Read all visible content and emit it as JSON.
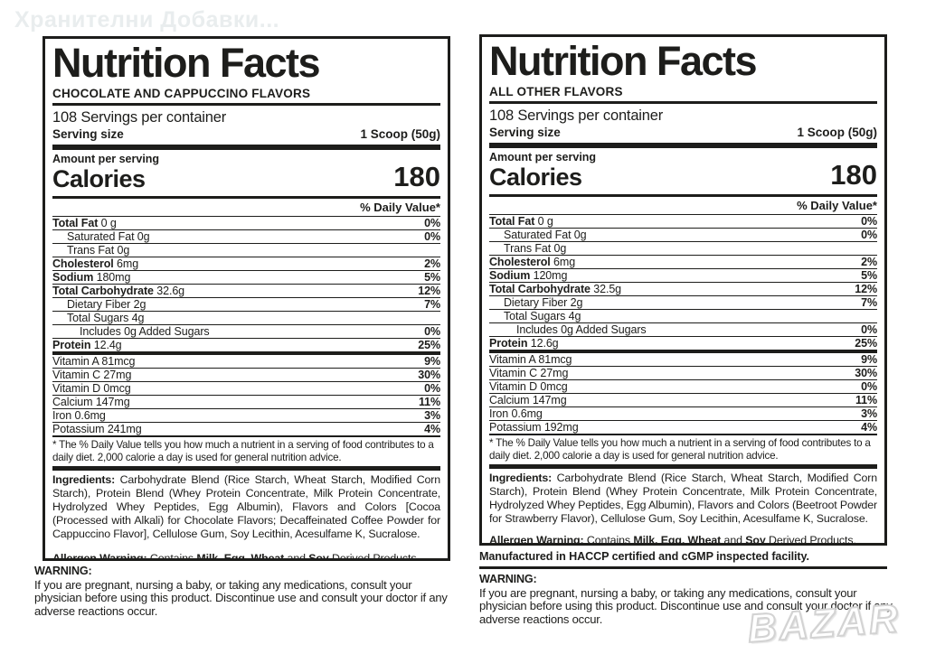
{
  "colors": {
    "text": "#1d1d1b",
    "background": "#ffffff",
    "watermark": "#e9edee"
  },
  "watermark_top": "Хранителни Добавки...",
  "watermark_logo": "BAZAR",
  "labels": {
    "left": {
      "title": "Nutrition Facts",
      "flavor": "CHOCOLATE AND CAPPUCCINO FLAVORS",
      "servings_per_container": "108 Servings per container",
      "serving_size_label": "Serving size",
      "serving_size_value": "1 Scoop (50g)",
      "amount_per_serving": "Amount per serving",
      "calories_label": "Calories",
      "calories_value": "180",
      "daily_value_header": "% Daily Value*",
      "nutrients": [
        {
          "b": "Total Fat",
          "r": " 0 g",
          "dv": "0%"
        },
        {
          "b": "",
          "r": "Saturated Fat 0g",
          "dv": "0%"
        },
        {
          "b": "",
          "r": "Trans Fat 0g",
          "dv": ""
        },
        {
          "b": "Cholesterol",
          "r": " 6mg",
          "dv": "2%"
        },
        {
          "b": "Sodium",
          "r": " 180mg",
          "dv": "5%"
        },
        {
          "b": "Total Carbohydrate",
          "r": " 32.6g",
          "dv": "12%"
        },
        {
          "b": "",
          "r": "Dietary Fiber 2g",
          "dv": "7%"
        },
        {
          "b": "",
          "r": "Total Sugars 4g",
          "dv": ""
        },
        {
          "b": "",
          "r": "Includes 0g Added Sugars",
          "dv": "0%"
        },
        {
          "b": "Protein",
          "r": " 12.4g",
          "dv": "25%"
        },
        {
          "b": "",
          "r": "Vitamin A 81mcg",
          "dv": "9%"
        },
        {
          "b": "",
          "r": "Vitamin C 27mg",
          "dv": "30%"
        },
        {
          "b": "",
          "r": "Vitamin D 0mcg",
          "dv": "0%"
        },
        {
          "b": "",
          "r": "Calcium 147mg",
          "dv": "11%"
        },
        {
          "b": "",
          "r": "Iron 0.6mg",
          "dv": "3%"
        },
        {
          "b": "",
          "r": "Potassium 241mg",
          "dv": "4%"
        }
      ],
      "footnote": "* The % Daily Value tells you how much a nutrient in a serving of food contributes to a daily diet. 2,000 calorie a day is used for general nutrition advice.",
      "ingredients_label": "Ingredients:",
      "ingredients_text": " Carbohydrate Blend (Rice Starch, Wheat Starch, Modified Corn Starch), Protein Blend (Whey Protein Concentrate, Milk Protein Concentrate, Hydrolyzed Whey Peptides, Egg Albumin), Flavors and Colors [Cocoa (Processed with Alkali) for Chocolate Flavors; Decaffeinated Coffee Powder for Cappuccino Flavor], Cellulose Gum, Soy Lecithin, Acesulfame K, Sucralose.",
      "allergen": {
        "label": "Allergen Warning:",
        "contains": " Contains ",
        "bold1": "Milk, Egg, Wheat",
        "and_word": " and ",
        "bold2": "Soy",
        "rest": " Derived Products."
      },
      "warning_title": "WARNING:",
      "warning_text": "If you are pregnant, nursing a baby, or taking any medications, consult your physician before using this product. Discontinue use and consult your doctor if any adverse reactions occur."
    },
    "right": {
      "title": "Nutrition Facts",
      "flavor": "ALL OTHER FLAVORS",
      "servings_per_container": "108 Servings per container",
      "serving_size_label": "Serving size",
      "serving_size_value": "1 Scoop (50g)",
      "amount_per_serving": "Amount per serving",
      "calories_label": "Calories",
      "calories_value": "180",
      "daily_value_header": "% Daily Value*",
      "nutrients": [
        {
          "b": "Total Fat",
          "r": " 0 g",
          "dv": "0%"
        },
        {
          "b": "",
          "r": "Saturated Fat 0g",
          "dv": "0%"
        },
        {
          "b": "",
          "r": "Trans Fat 0g",
          "dv": ""
        },
        {
          "b": "Cholesterol",
          "r": " 6mg",
          "dv": "2%"
        },
        {
          "b": "Sodium",
          "r": " 120mg",
          "dv": "5%"
        },
        {
          "b": "Total Carbohydrate",
          "r": " 32.5g",
          "dv": "12%"
        },
        {
          "b": "",
          "r": "Dietary Fiber 2g",
          "dv": "7%"
        },
        {
          "b": "",
          "r": "Total Sugars 4g",
          "dv": ""
        },
        {
          "b": "",
          "r": "Includes 0g Added Sugars",
          "dv": "0%"
        },
        {
          "b": "Protein",
          "r": " 12.6g",
          "dv": "25%"
        },
        {
          "b": "",
          "r": "Vitamin A 81mcg",
          "dv": "9%"
        },
        {
          "b": "",
          "r": "Vitamin C 27mg",
          "dv": "30%"
        },
        {
          "b": "",
          "r": "Vitamin D 0mcg",
          "dv": "0%"
        },
        {
          "b": "",
          "r": "Calcium 147mg",
          "dv": "11%"
        },
        {
          "b": "",
          "r": "Iron 0.6mg",
          "dv": "3%"
        },
        {
          "b": "",
          "r": "Potassium 192mg",
          "dv": "4%"
        }
      ],
      "footnote": "* The % Daily Value tells you how much a nutrient in a serving of food contributes to a daily diet. 2,000 calorie a day is used for general nutrition advice.",
      "ingredients_label": "Ingredients:",
      "ingredients_text": " Carbohydrate Blend (Rice Starch, Wheat Starch, Modified Corn Starch), Protein Blend (Whey Protein Concentrate, Milk Protein Concentrate, Hydrolyzed Whey Peptides, Egg Albumin), Flavors and Colors (Beetroot Powder for Strawberry Flavor), Cellulose Gum, Soy Lecithin, Acesulfame K, Sucralose.",
      "allergen": {
        "label": "Allergen Warning:",
        "contains": " Contains ",
        "bold1": "Milk, Egg, Wheat",
        "and_word": " and ",
        "bold2": "Soy",
        "rest": " Derived Products."
      },
      "manufactured": "Manufactured in HACCP certified and cGMP inspected facility.",
      "warning_title": "WARNING:",
      "warning_text": "If you are pregnant, nursing a baby, or taking any medications, consult your physician before using this product. Discontinue use and consult your doctor if any adverse reactions occur."
    }
  }
}
